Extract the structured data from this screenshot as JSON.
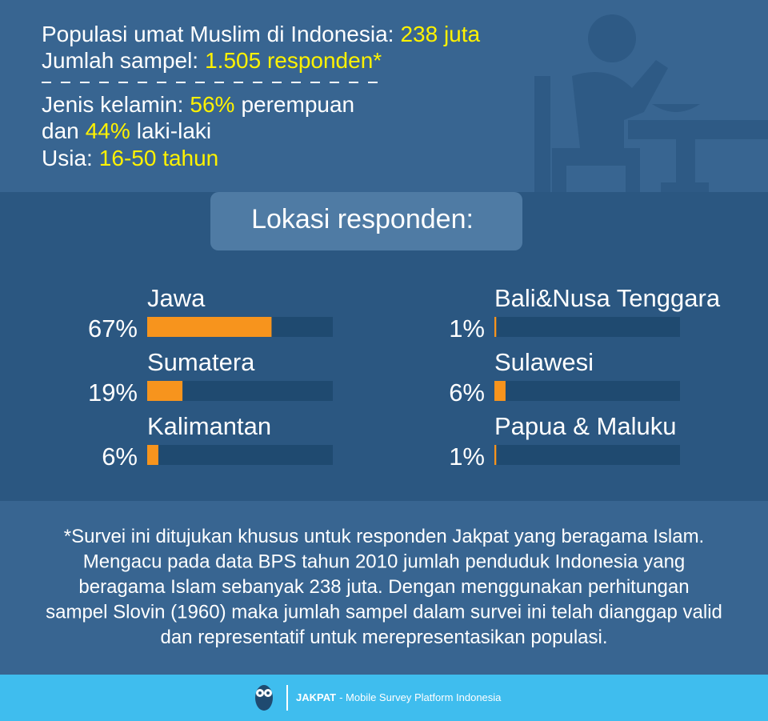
{
  "header": {
    "lines": [
      [
        {
          "text": "Populasi umat Muslim di Indonesia:",
          "color": "#ffffff"
        },
        {
          "text": "238 juta",
          "color": "#fff200"
        }
      ],
      [
        {
          "text": "Jumlah sampel:",
          "color": "#ffffff"
        },
        {
          "text": "1.505 responden*",
          "color": "#fff200"
        }
      ],
      [
        {
          "text": "Jenis kelamin:",
          "color": "#ffffff"
        },
        {
          "text": "56%",
          "color": "#fff200"
        },
        {
          "text": "perempuan",
          "color": "#ffffff"
        }
      ],
      [
        {
          "text": "dan",
          "color": "#ffffff"
        },
        {
          "text": "44%",
          "color": "#fff200"
        },
        {
          "text": "laki-laki",
          "color": "#ffffff"
        }
      ],
      [
        {
          "text": "Usia:",
          "color": "#ffffff"
        },
        {
          "text": "16-50 tahun",
          "color": "#fff200"
        }
      ]
    ]
  },
  "chart_data": {
    "type": "bar",
    "title": "Lokasi responden:",
    "categories": [
      "Jawa",
      "Sumatera",
      "Kalimantan",
      "Bali&Nusa Tenggara",
      "Sulawesi",
      "Papua & Maluku"
    ],
    "values": [
      67,
      19,
      6,
      1,
      6,
      1
    ],
    "value_labels": [
      "67%",
      "19%",
      "6%",
      "1%",
      "6%",
      "1%"
    ],
    "xlim": [
      0,
      100
    ],
    "color": "#f7941d",
    "track_color": "#1f4a70"
  },
  "footnote": {
    "lines": [
      "*Survei ini ditujukan khusus untuk responden Jakpat yang beragama Islam.",
      "Mengacu pada data BPS tahun 2010 jumlah penduduk Indonesia yang",
      "beragama Islam sebanyak 238 juta. Dengan menggunakan perhitungan",
      "sampel Slovin (1960) maka jumlah sampel dalam survei ini telah dianggap valid",
      "dan representatif untuk merepresentasikan populasi."
    ]
  },
  "footer": {
    "brand": "JAKPAT",
    "tagline": "- Mobile Survey Platform Indonesia"
  }
}
